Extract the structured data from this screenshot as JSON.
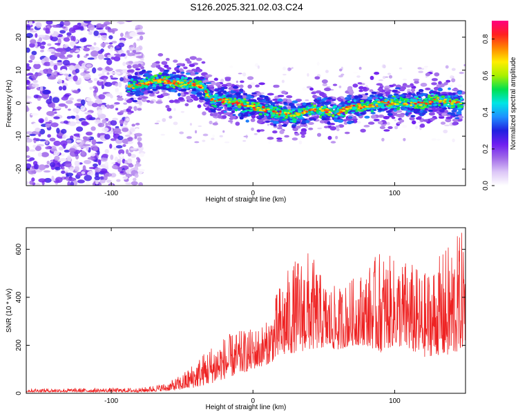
{
  "title": "S126.2025.321.02.03.C24",
  "chart_data": [
    {
      "type": "heatmap",
      "name": "spectrogram",
      "xlabel": "Height of straight line (km)",
      "ylabel": "Frequency (Hz)",
      "xlim": [
        -160,
        150
      ],
      "ylim": [
        -25,
        25
      ],
      "xticks": [
        -100,
        0,
        100
      ],
      "yticks": [
        -20,
        -10,
        0,
        10,
        20
      ],
      "ridge": {
        "description_points_x": [
          -88,
          -75,
          -65,
          -55,
          -45,
          -35,
          -30,
          -20,
          -10,
          0,
          10,
          20,
          30,
          40,
          50,
          60,
          70,
          80,
          90,
          100,
          110,
          120,
          130,
          140,
          148
        ],
        "description_points_y": [
          5,
          6,
          7,
          6,
          6,
          5,
          1,
          1,
          0,
          -1,
          -2,
          -3,
          -4,
          -2,
          -2,
          -3,
          -1,
          -1,
          0,
          0,
          0,
          0,
          1,
          0,
          0
        ]
      },
      "noise_region_x": [
        -160,
        -78
      ],
      "colorbar": {
        "label": "Normalized spectral amplitude",
        "range": [
          0.0,
          0.9
        ],
        "ticks": [
          0.0,
          0.2,
          0.4,
          0.6,
          0.8
        ],
        "tick_labels": [
          "0.0",
          "0.2",
          "0.4",
          "0.6",
          "0.8"
        ],
        "colors": [
          "#ffffff",
          "#dcc6f7",
          "#a16ae8",
          "#6f1ff0",
          "#2020e0",
          "#1e90ff",
          "#00e5e5",
          "#00e050",
          "#a8f000",
          "#ffee00",
          "#ff8800",
          "#ff2020",
          "#ff0080"
        ]
      }
    },
    {
      "type": "line",
      "name": "snr",
      "xlabel": "Height of straight line (km)",
      "ylabel": "SNR (10 * v/v)",
      "xlim": [
        -160,
        150
      ],
      "ylim": [
        0,
        690
      ],
      "xticks": [
        -100,
        0,
        100
      ],
      "yticks": [
        0,
        200,
        400,
        600
      ],
      "color": "#ee2222",
      "envelope": {
        "x": [
          -160,
          -80,
          -60,
          -50,
          -40,
          -30,
          -20,
          -10,
          0,
          10,
          20,
          30,
          40,
          50,
          60,
          70,
          80,
          90,
          100,
          110,
          120,
          130,
          140,
          150
        ],
        "y_low": [
          5,
          5,
          10,
          15,
          25,
          40,
          60,
          80,
          100,
          120,
          150,
          170,
          180,
          190,
          180,
          200,
          200,
          170,
          200,
          180,
          150,
          160,
          150,
          200
        ],
        "y_high": [
          20,
          22,
          45,
          80,
          140,
          200,
          240,
          260,
          270,
          300,
          480,
          560,
          600,
          470,
          440,
          480,
          520,
          600,
          560,
          560,
          500,
          560,
          640,
          690
        ]
      }
    }
  ]
}
